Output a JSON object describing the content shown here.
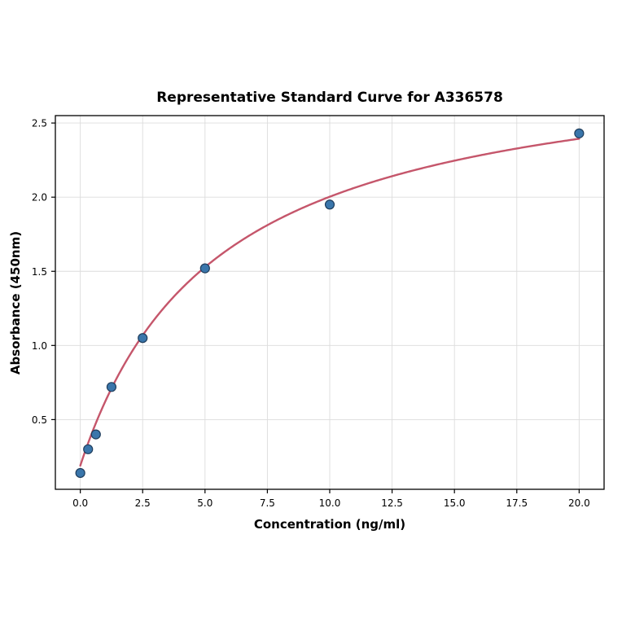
{
  "chart_data": {
    "type": "scatter",
    "title": "Representative Standard Curve for A336578",
    "xlabel": "Concentration (ng/ml)",
    "ylabel": "Absorbance (450nm)",
    "xlim": [
      -1,
      21
    ],
    "ylim": [
      0.03,
      2.55
    ],
    "x_ticks": [
      0,
      2.5,
      5,
      7.5,
      10,
      12.5,
      15,
      17.5,
      20
    ],
    "x_tick_labels": [
      "0.0",
      "2.5",
      "5.0",
      "7.5",
      "10.0",
      "12.5",
      "15.0",
      "17.5",
      "20.0"
    ],
    "y_ticks": [
      0.5,
      1.0,
      1.5,
      2.0,
      2.5
    ],
    "y_tick_labels": [
      "0.5",
      "1.0",
      "1.5",
      "2.0",
      "2.5"
    ],
    "grid": true,
    "legend": "none",
    "points": {
      "x": [
        0,
        0.3125,
        0.625,
        1.25,
        2.5,
        5,
        10,
        20
      ],
      "y": [
        0.14,
        0.3,
        0.4,
        0.72,
        1.05,
        1.52,
        1.95,
        2.43
      ]
    },
    "fit_curve": {
      "type": "4PL",
      "a": 0.19,
      "b": 1.0,
      "c": 5.5,
      "d": 3.0,
      "x_start": 0,
      "x_end": 20
    },
    "colors": {
      "point_fill": "#3a76ab",
      "point_edge": "#1f3d5c",
      "curve": "#c5566b",
      "grid": "#dcdcdc",
      "spine": "#000000",
      "background": "#ffffff"
    }
  }
}
